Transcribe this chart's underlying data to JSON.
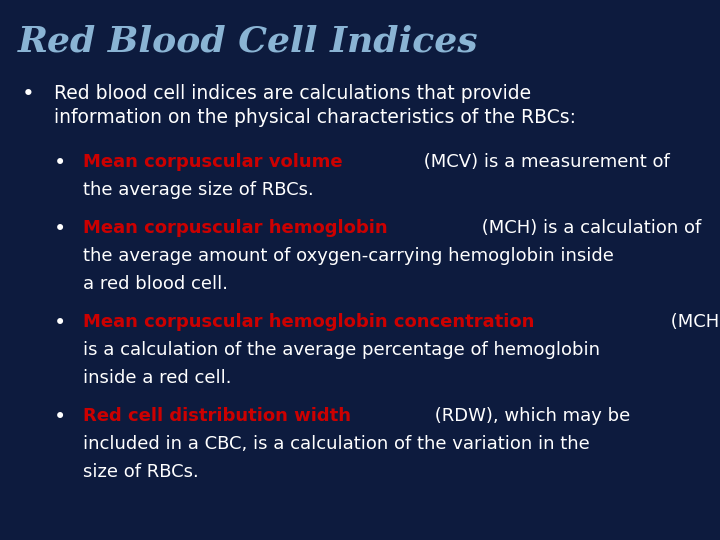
{
  "title": "Red Blood Cell Indices",
  "title_color": "#8ab4d4",
  "title_fontsize": 26,
  "background_color": "#0d1b3e",
  "red_color": "#cc0000",
  "white_color": "#ffffff",
  "figsize": [
    7.2,
    5.4
  ],
  "dpi": 100,
  "font_size_l1": 13.5,
  "font_size_l2": 13.0,
  "sub_items": [
    {
      "bold_text": "Mean corpuscular volume",
      "line1_rest": " (MCV) is a measurement of",
      "extra_lines": [
        "the average size of RBCs."
      ]
    },
    {
      "bold_text": "Mean corpuscular hemoglobin",
      "line1_rest": " (MCH) is a calculation of",
      "extra_lines": [
        "the average amount of oxygen-carrying hemoglobin inside",
        "a red blood cell."
      ]
    },
    {
      "bold_text": "Mean corpuscular hemoglobin concentration",
      "line1_rest": " (MCHC)",
      "extra_lines": [
        "is a calculation of the average percentage of hemoglobin",
        "inside a red cell."
      ]
    },
    {
      "bold_text": "Red cell distribution width",
      "line1_rest": " (RDW), which may be",
      "extra_lines": [
        "included in a CBC, is a calculation of the variation in the",
        "size of RBCs."
      ]
    }
  ]
}
